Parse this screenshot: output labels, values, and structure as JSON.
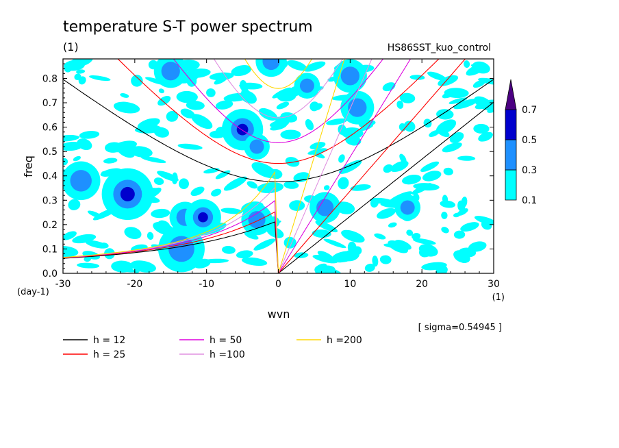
{
  "chart_data": {
    "type": "heatmap",
    "title": "temperature S-T power spectrum",
    "title_unit": "(1)",
    "experiment": "HS86SST_kuo_control",
    "xlabel": "wvn",
    "x_unit": "(1)",
    "ylabel": "freq",
    "y_unit": "(day-1)",
    "xlim": [
      -30,
      30
    ],
    "ylim": [
      0,
      0.88
    ],
    "x_ticks": [
      "-30",
      "-20",
      "-10",
      "0",
      "10",
      "20",
      "30"
    ],
    "y_ticks": [
      "0.0",
      "0.1",
      "0.2",
      "0.3",
      "0.4",
      "0.5",
      "0.6",
      "0.7",
      "0.8"
    ],
    "sigma_label": "[ sigma=0.54945 ]",
    "colorbar": {
      "levels": [
        "0.1",
        "0.3",
        "0.5",
        "0.7"
      ],
      "colors": [
        "#00ffff",
        "#1e90ff",
        "#0000cd",
        "#4b0082"
      ],
      "extend": "max"
    },
    "series": [
      {
        "name": "h = 12",
        "color": "#000000",
        "h": 12
      },
      {
        "name": "h = 25",
        "color": "#ff0000",
        "h": 25
      },
      {
        "name": "h = 50",
        "color": "#dd00dd",
        "h": 50
      },
      {
        "name": "h =100",
        "color": "#e090e0",
        "h": 100
      },
      {
        "name": "h =200",
        "color": "#ffd700",
        "h": 200
      }
    ],
    "contour_blobs": [
      {
        "x": -21,
        "y": 0.325,
        "r": 2.0,
        "level": 3
      },
      {
        "x": -27.5,
        "y": 0.38,
        "r": 1.5,
        "level": 2
      },
      {
        "x": -13.5,
        "y": 0.1,
        "r": 1.8,
        "level": 2
      },
      {
        "x": -13,
        "y": 0.23,
        "r": 1.2,
        "level": 2
      },
      {
        "x": -10.5,
        "y": 0.23,
        "r": 1.4,
        "level": 3
      },
      {
        "x": -5,
        "y": 0.59,
        "r": 1.6,
        "level": 3
      },
      {
        "x": -3,
        "y": 0.22,
        "r": 1.2,
        "level": 2
      },
      {
        "x": 6.5,
        "y": 0.27,
        "r": 1.2,
        "level": 2
      },
      {
        "x": 10,
        "y": 0.81,
        "r": 1.3,
        "level": 2
      },
      {
        "x": 11,
        "y": 0.68,
        "r": 1.3,
        "level": 2
      },
      {
        "x": -15,
        "y": 0.83,
        "r": 1.3,
        "level": 2
      },
      {
        "x": 18,
        "y": 0.27,
        "r": 1.0,
        "level": 2
      },
      {
        "x": 4,
        "y": 0.77,
        "r": 1.0,
        "level": 2
      },
      {
        "x": -1,
        "y": 0.87,
        "r": 1.2,
        "level": 2
      },
      {
        "x": -3,
        "y": 0.52,
        "r": 1.0,
        "level": 2
      }
    ]
  }
}
